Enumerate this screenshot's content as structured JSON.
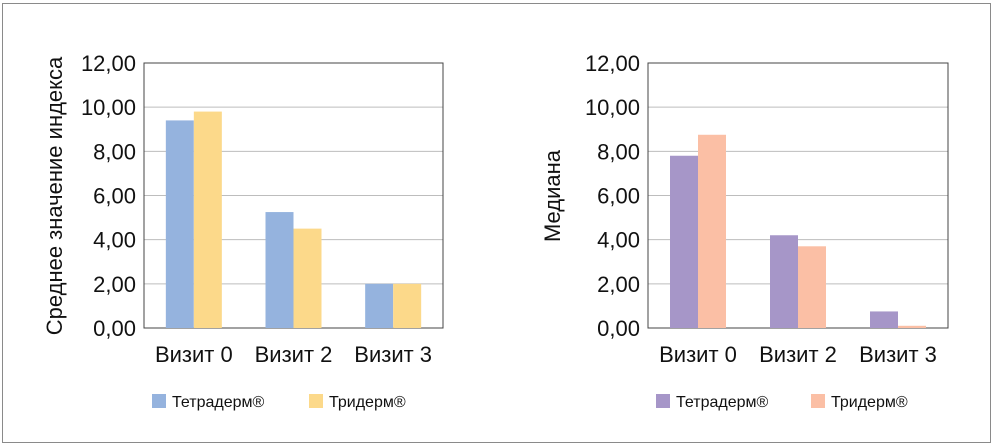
{
  "chart_data": [
    {
      "type": "bar",
      "ylabel": "Среднее значение индекса",
      "categories": [
        "Визит 0",
        "Визит 2",
        "Визит 3"
      ],
      "ylim": [
        0,
        12
      ],
      "yticks": [
        "0,00",
        "2,00",
        "4,00",
        "6,00",
        "8,00",
        "10,00",
        "12,00"
      ],
      "grid": true,
      "legend_position": "bottom",
      "series": [
        {
          "name": "Тетрадерм®",
          "color": "#95b3de",
          "values": [
            9.4,
            5.25,
            2.0
          ]
        },
        {
          "name": "Тридерм®",
          "color": "#fcd98a",
          "values": [
            9.8,
            4.5,
            2.0
          ]
        }
      ]
    },
    {
      "type": "bar",
      "ylabel": "Медиана",
      "categories": [
        "Визит 0",
        "Визит 2",
        "Визит 3"
      ],
      "ylim": [
        0,
        12
      ],
      "yticks": [
        "0,00",
        "2,00",
        "4,00",
        "6,00",
        "8,00",
        "10,00",
        "12,00"
      ],
      "grid": true,
      "legend_position": "bottom",
      "series": [
        {
          "name": "Тетрадерм®",
          "color": "#a696c8",
          "values": [
            7.8,
            4.2,
            0.75
          ]
        },
        {
          "name": "Тридерм®",
          "color": "#fbbfa5",
          "values": [
            8.75,
            3.7,
            0.1
          ]
        }
      ]
    }
  ]
}
